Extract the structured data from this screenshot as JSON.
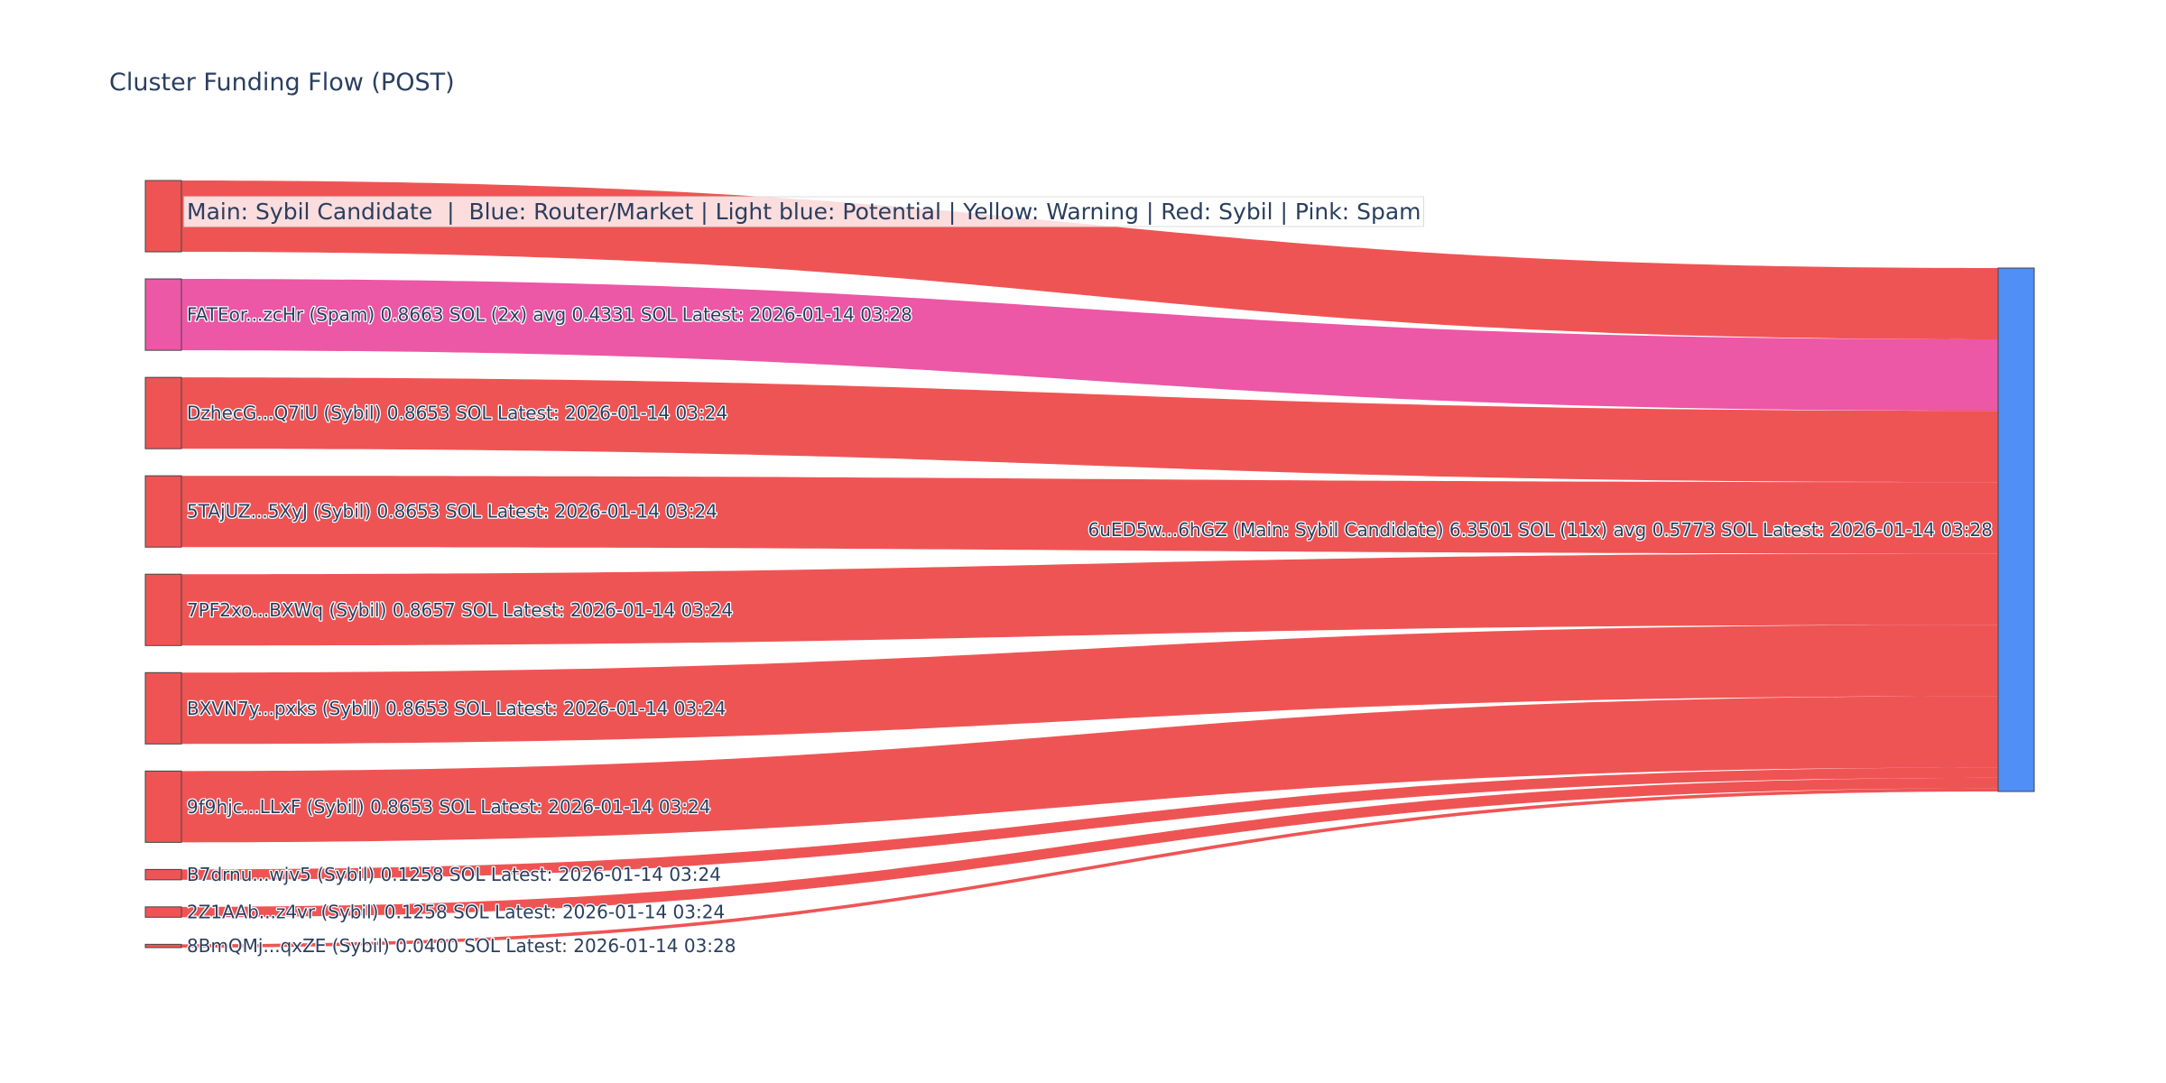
{
  "chart_data": {
    "type": "sankey",
    "title": "Cluster Funding Flow (POST)",
    "legend_annotation": "Main: Sybil Candidate  |  Blue: Router/Market | Light blue: Potential | Yellow: Warning | Red: Sybil | Pink: Spam",
    "value_unit": "SOL",
    "target": {
      "label": "6uED5w...6hGZ (Main: Sybil Candidate) 6.3501 SOL (11x) avg 0.5773 SOL Latest: 2026-01-14 03:28",
      "color": "#4f8ff6"
    },
    "sources": [
      {
        "label": "",
        "value": 0.8653,
        "color": "#ef5454"
      },
      {
        "label": "FATEor...zcHr (Spam) 0.8663 SOL (2x) avg 0.4331 SOL Latest: 2026-01-14 03:28",
        "value": 0.8663,
        "color": "#ec57a6"
      },
      {
        "label": "DzhecG...Q7iU (Sybil) 0.8653 SOL Latest: 2026-01-14 03:24",
        "value": 0.8653,
        "color": "#ef5454"
      },
      {
        "label": "5TAjUZ...5XyJ (Sybil) 0.8653 SOL Latest: 2026-01-14 03:24",
        "value": 0.8653,
        "color": "#ef5454"
      },
      {
        "label": "7PF2xo...BXWq (Sybil) 0.8657 SOL Latest: 2026-01-14 03:24",
        "value": 0.8657,
        "color": "#ef5454"
      },
      {
        "label": "BXVN7y...pxks (Sybil) 0.8653 SOL Latest: 2026-01-14 03:24",
        "value": 0.8653,
        "color": "#ef5454"
      },
      {
        "label": "9f9hjc...LLxF (Sybil) 0.8653 SOL Latest: 2026-01-14 03:24",
        "value": 0.8653,
        "color": "#ef5454"
      },
      {
        "label": "B7drnu...wjv5 (Sybil) 0.1258 SOL Latest: 2026-01-14 03:24",
        "value": 0.1258,
        "color": "#ef5454"
      },
      {
        "label": "2Z1AAb...z4vr (Sybil) 0.1258 SOL Latest: 2026-01-14 03:24",
        "value": 0.1258,
        "color": "#ef5454"
      },
      {
        "label": "8BmQMj...qxZE (Sybil) 0.0400 SOL Latest: 2026-01-14 03:28",
        "value": 0.04,
        "color": "#ef5454"
      }
    ]
  }
}
